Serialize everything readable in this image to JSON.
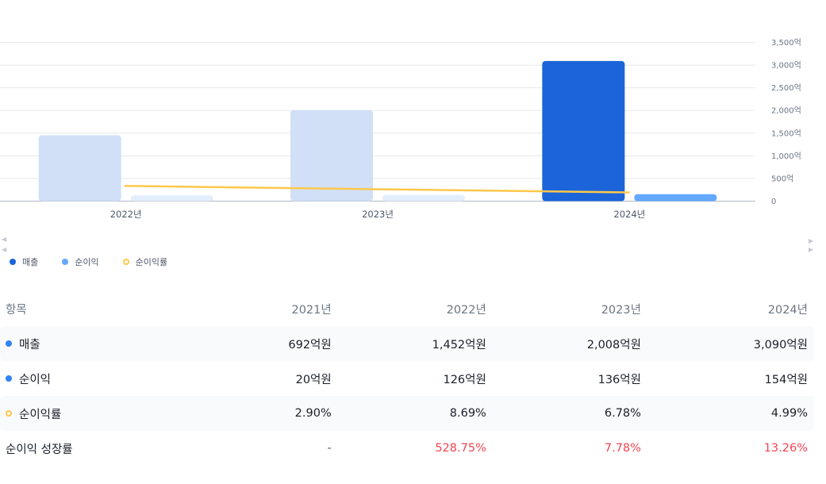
{
  "chart_data": {
    "type": "bar",
    "categories": [
      "2022년",
      "2023년",
      "2024년"
    ],
    "series": [
      {
        "name": "매출",
        "kind": "bar",
        "values": [
          1452,
          2008,
          3090
        ],
        "color": "#1b64da",
        "faded_color": "#d1dff7"
      },
      {
        "name": "순이익",
        "kind": "bar",
        "values": [
          126,
          136,
          154
        ],
        "color": "#64a8ff",
        "faded_color": "#e3eefc"
      },
      {
        "name": "순이익률",
        "kind": "line",
        "values": [
          8.69,
          6.78,
          4.99
        ],
        "color": "#ffc84a"
      }
    ],
    "highlighted_category": "2024년",
    "ylim": [
      0,
      3500
    ],
    "yticks": [
      "0",
      "500억",
      "1,000억",
      "1,500억",
      "2,000억",
      "2,500억",
      "3,000억",
      "3,500억"
    ],
    "ytick_values": [
      0,
      500,
      1000,
      1500,
      2000,
      2500,
      3000,
      3500
    ],
    "grid": true,
    "legend_position": "bottom-left"
  },
  "legend": [
    {
      "label": "매출",
      "color": "#1b64da",
      "style": "filled"
    },
    {
      "label": "순이익",
      "color": "#64a8ff",
      "style": "filled"
    },
    {
      "label": "순이익률",
      "color": "#ffc84a",
      "style": "ring"
    }
  ],
  "table": {
    "header": [
      "항목",
      "2021년",
      "2022년",
      "2023년",
      "2024년"
    ],
    "rows": [
      {
        "label": "매출",
        "marker": "filled",
        "marker_color": "#3182f6",
        "values": [
          "692억원",
          "1,452억원",
          "2,008억원",
          "3,090억원"
        ]
      },
      {
        "label": "순이익",
        "marker": "filled",
        "marker_color": "#3182f6",
        "values": [
          "20억원",
          "126억원",
          "136억원",
          "154억원"
        ]
      },
      {
        "label": "순이익률",
        "marker": "ring",
        "marker_color": "#ffc84a",
        "values": [
          "2.90%",
          "8.69%",
          "6.78%",
          "4.99%"
        ]
      },
      {
        "label": "순이익 성장률",
        "marker": "none",
        "values": [
          "-",
          "528.75%",
          "7.78%",
          "13.26%"
        ]
      }
    ]
  }
}
